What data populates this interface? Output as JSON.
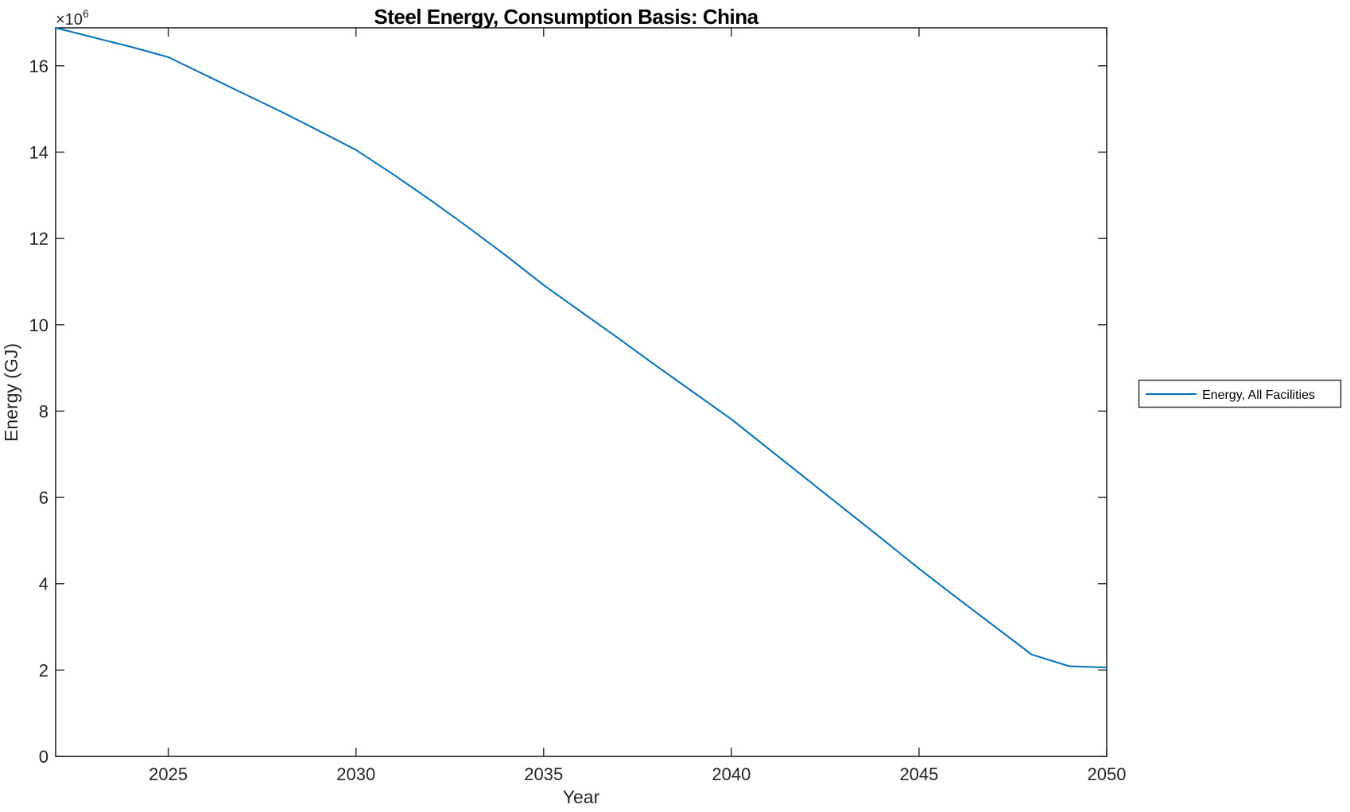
{
  "figure": {
    "background": "#ffffff"
  },
  "chart_data": {
    "type": "line",
    "title": "Steel Energy, Consumption Basis: China",
    "xlabel": "Year",
    "ylabel": "Energy (GJ)",
    "y_offset_label": {
      "base": "×10",
      "exponent": "6"
    },
    "axis_color": "#262626",
    "grid": false,
    "xlim": [
      2022,
      2050
    ],
    "ylim_e6": [
      0,
      16.88
    ],
    "y_multiplier": 1000000,
    "xticks": [
      2025,
      2030,
      2035,
      2040,
      2045,
      2050
    ],
    "yticks_e6": [
      0,
      2,
      4,
      6,
      8,
      10,
      12,
      14,
      16
    ],
    "legend": {
      "position": "right-outside",
      "border": true,
      "entries": [
        "Energy, All Facilities"
      ]
    },
    "series": [
      {
        "name": "Energy, All Facilities",
        "color": "#0072BD",
        "x": [
          2022,
          2023,
          2024,
          2025,
          2026,
          2027,
          2028,
          2029,
          2030,
          2031,
          2032,
          2033,
          2034,
          2035,
          2036,
          2037,
          2038,
          2039,
          2040,
          2041,
          2042,
          2043,
          2044,
          2045,
          2046,
          2047,
          2048,
          2049,
          2050
        ],
        "values_gj": [
          16880000,
          16660000,
          16440000,
          16200000,
          15780000,
          15360000,
          14940000,
          14500000,
          14050000,
          13480000,
          12880000,
          12250000,
          11600000,
          10920000,
          10300000,
          9680000,
          9050000,
          8430000,
          7810000,
          7120000,
          6430000,
          5740000,
          5050000,
          4350000,
          3680000,
          3020000,
          2360000,
          2090000,
          2060000
        ]
      }
    ]
  }
}
